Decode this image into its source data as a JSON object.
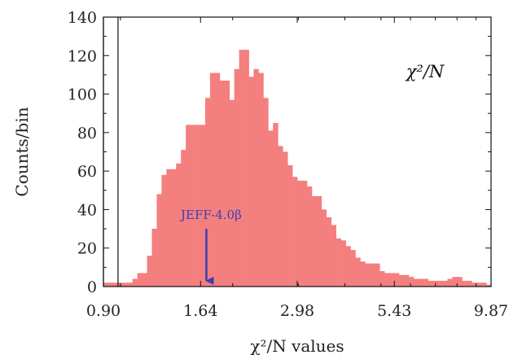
{
  "chart_data": {
    "type": "bar",
    "title": "",
    "inset_label": "χ²/N",
    "xlabel": "χ²/N values",
    "ylabel": "Counts/bin",
    "x_scale": "log",
    "xlim": [
      0.9,
      9.87
    ],
    "ylim": [
      0,
      140
    ],
    "x_ticks": [
      0.9,
      1.64,
      2.98,
      5.43,
      9.87
    ],
    "x_tick_labels": [
      "0.90",
      "1.64",
      "2.98",
      "5.43",
      "9.87"
    ],
    "y_ticks": [
      0,
      20,
      40,
      60,
      80,
      100,
      120,
      140
    ],
    "y_tick_labels": [
      "0",
      "20",
      "40",
      "60",
      "80",
      "100",
      "120",
      "140"
    ],
    "grid": false,
    "bar_color": "#f47f7f",
    "bins": {
      "edges_start": 0.9,
      "edges_end": 9.87,
      "count": 80,
      "counts": [
        2,
        2,
        2,
        2,
        2,
        2,
        4,
        7,
        7,
        16,
        30,
        48,
        58,
        61,
        61,
        64,
        71,
        84,
        84,
        84,
        84,
        98,
        111,
        111,
        107,
        107,
        97,
        113,
        123,
        123,
        109,
        113,
        111,
        98,
        81,
        85,
        73,
        70,
        63,
        57,
        55,
        55,
        52,
        47,
        47,
        40,
        36,
        32,
        25,
        24,
        21,
        19,
        15,
        13,
        12,
        12,
        12,
        8,
        7,
        7,
        7,
        6,
        6,
        5,
        4,
        4,
        4,
        3,
        3,
        3,
        3,
        4,
        5,
        5,
        3,
        3,
        2,
        2,
        2,
        1
      ]
    },
    "reference_lines": [
      0.9,
      0.985
    ],
    "annotation": {
      "label": "JEFF-4.0β",
      "x": 1.7,
      "arrow_from_y": 30,
      "arrow_to_y": 3,
      "color": "#3a3fb5"
    }
  }
}
